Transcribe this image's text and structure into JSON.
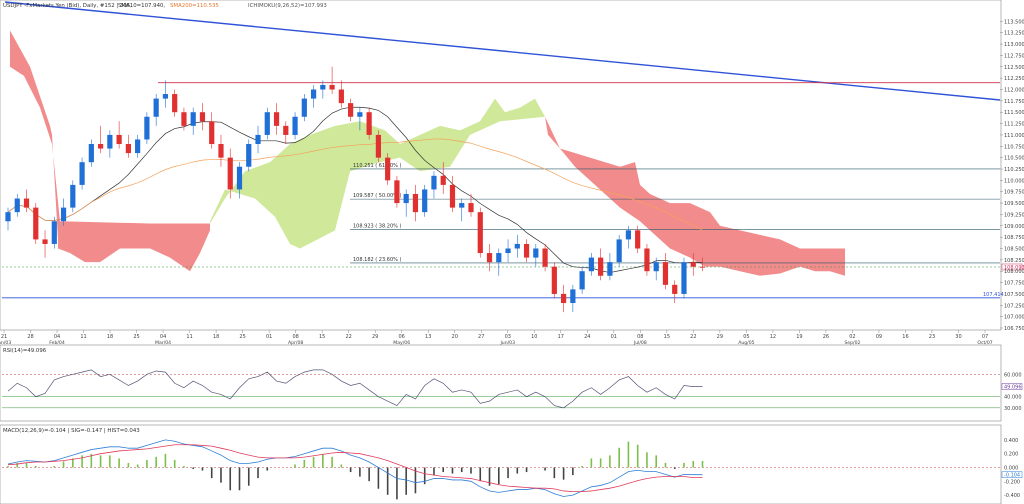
{
  "header": {
    "symbol_text": "USDJPY -FxMarkets Yen (Bid), Daily, #152 | 305,",
    "sma10_text": "SMA10=107.940,",
    "sma200_text": "SMA200=110.535",
    "ichimoku_text": "ICHIMOKU(9,26,52)=107.993"
  },
  "colors": {
    "up": "#1f6fd6",
    "down": "#e03030",
    "sma10": "#333333",
    "sma200": "#f5a25a",
    "cloud_bull": "#cfe89a",
    "cloud_bear": "#f28b8b",
    "trend": "#2f52d8",
    "resistance": "#d0304a",
    "support": "#2f52d8",
    "rsi": "#555577",
    "macd": "#2f7fd8",
    "signal": "#e03a5a",
    "hist_pos": "#7ac04a",
    "hist_neg": "#444444"
  },
  "chart_data": {
    "type": "candlestick",
    "title": "USDJPY Daily",
    "ylim": [
      106.75,
      113.75
    ],
    "y_ticks": [
      "113.500",
      "113.250",
      "113.000",
      "112.750",
      "112.500",
      "112.250",
      "112.000",
      "111.750",
      "111.500",
      "111.250",
      "111.000",
      "110.750",
      "110.500",
      "110.250",
      "110.000",
      "109.750",
      "109.500",
      "109.250",
      "109.000",
      "108.750",
      "108.500",
      "108.250",
      "108.000",
      "107.750",
      "107.500",
      "107.250",
      "107.000",
      "106.750"
    ],
    "x_ticks": [
      {
        "label": "21",
        "sub": "Jan/03"
      },
      {
        "label": "28",
        "sub": ""
      },
      {
        "label": "04",
        "sub": "Feb/04"
      },
      {
        "label": "11",
        "sub": ""
      },
      {
        "label": "18",
        "sub": ""
      },
      {
        "label": "25",
        "sub": ""
      },
      {
        "label": "04",
        "sub": "Mar/04"
      },
      {
        "label": "11",
        "sub": ""
      },
      {
        "label": "18",
        "sub": ""
      },
      {
        "label": "25",
        "sub": ""
      },
      {
        "label": "01",
        "sub": ""
      },
      {
        "label": "08",
        "sub": "Apr/08"
      },
      {
        "label": "15",
        "sub": ""
      },
      {
        "label": "22",
        "sub": ""
      },
      {
        "label": "29",
        "sub": ""
      },
      {
        "label": "06",
        "sub": "May/06"
      },
      {
        "label": "13",
        "sub": ""
      },
      {
        "label": "20",
        "sub": ""
      },
      {
        "label": "27",
        "sub": ""
      },
      {
        "label": "03",
        "sub": "Jun/03"
      },
      {
        "label": "10",
        "sub": ""
      },
      {
        "label": "17",
        "sub": ""
      },
      {
        "label": "24",
        "sub": ""
      },
      {
        "label": "01",
        "sub": ""
      },
      {
        "label": "08",
        "sub": "Jul/08"
      },
      {
        "label": "15",
        "sub": ""
      },
      {
        "label": "22",
        "sub": ""
      },
      {
        "label": "29",
        "sub": ""
      },
      {
        "label": "05",
        "sub": "Aug/05"
      },
      {
        "label": "12",
        "sub": ""
      },
      {
        "label": "19",
        "sub": ""
      },
      {
        "label": "26",
        "sub": ""
      },
      {
        "label": "02",
        "sub": "Sep/02"
      },
      {
        "label": "09",
        "sub": ""
      },
      {
        "label": "16",
        "sub": ""
      },
      {
        "label": "23",
        "sub": ""
      },
      {
        "label": "30",
        "sub": ""
      },
      {
        "label": "07",
        "sub": "Oct/07"
      }
    ],
    "fib_levels": [
      {
        "label": "110.251 ( 61.80% )",
        "value": 110.251
      },
      {
        "label": "109.587 ( 50.00% )",
        "value": 109.587
      },
      {
        "label": "108.923 ( 38.20% )",
        "value": 108.923
      },
      {
        "label": "108.182 ( 23.60% )",
        "value": 108.182
      }
    ],
    "resistance": 112.15,
    "support_label": "107.414",
    "support": 107.414,
    "last_price_label": "108.093",
    "last_price": 108.093,
    "candles": [
      [
        109.1,
        109.4,
        108.9,
        109.3
      ],
      [
        109.3,
        109.7,
        109.2,
        109.6
      ],
      [
        109.6,
        109.8,
        109.3,
        109.4
      ],
      [
        109.4,
        109.5,
        108.6,
        108.7
      ],
      [
        108.7,
        108.9,
        108.3,
        108.6
      ],
      [
        108.6,
        109.2,
        108.5,
        109.1
      ],
      [
        109.1,
        109.6,
        109.0,
        109.4
      ],
      [
        109.4,
        110.0,
        109.3,
        109.9
      ],
      [
        109.9,
        110.5,
        109.8,
        110.4
      ],
      [
        110.4,
        110.9,
        110.3,
        110.8
      ],
      [
        110.8,
        111.2,
        110.6,
        110.7
      ],
      [
        110.7,
        111.1,
        110.5,
        111.0
      ],
      [
        111.0,
        111.3,
        110.7,
        110.8
      ],
      [
        110.8,
        111.0,
        110.5,
        110.6
      ],
      [
        110.6,
        111.0,
        110.5,
        110.9
      ],
      [
        110.9,
        111.5,
        110.8,
        111.4
      ],
      [
        111.4,
        111.9,
        111.2,
        111.8
      ],
      [
        111.8,
        112.2,
        111.6,
        111.9
      ],
      [
        111.9,
        112.0,
        111.4,
        111.5
      ],
      [
        111.5,
        111.6,
        111.1,
        111.2
      ],
      [
        111.2,
        111.6,
        111.0,
        111.5
      ],
      [
        111.5,
        111.7,
        111.1,
        111.3
      ],
      [
        111.3,
        111.5,
        110.7,
        110.8
      ],
      [
        110.8,
        111.0,
        110.3,
        110.5
      ],
      [
        110.5,
        110.7,
        109.6,
        109.8
      ],
      [
        109.8,
        110.4,
        109.6,
        110.3
      ],
      [
        110.3,
        110.9,
        110.2,
        110.8
      ],
      [
        110.8,
        111.2,
        110.6,
        111.0
      ],
      [
        111.0,
        111.6,
        110.9,
        111.5
      ],
      [
        111.5,
        111.7,
        111.0,
        111.2
      ],
      [
        111.2,
        111.3,
        110.8,
        111.0
      ],
      [
        111.0,
        111.5,
        110.9,
        111.4
      ],
      [
        111.4,
        111.9,
        111.3,
        111.8
      ],
      [
        111.8,
        112.1,
        111.6,
        112.0
      ],
      [
        112.0,
        112.2,
        111.8,
        112.1
      ],
      [
        112.1,
        112.5,
        111.9,
        112.0
      ],
      [
        112.0,
        112.2,
        111.6,
        111.7
      ],
      [
        111.7,
        111.8,
        111.3,
        111.4
      ],
      [
        111.4,
        111.6,
        111.1,
        111.5
      ],
      [
        111.5,
        111.6,
        110.9,
        111.0
      ],
      [
        111.0,
        111.1,
        110.4,
        110.5
      ],
      [
        110.5,
        110.6,
        109.9,
        110.0
      ],
      [
        110.0,
        110.1,
        109.4,
        109.5
      ],
      [
        109.5,
        109.8,
        109.2,
        109.7
      ],
      [
        109.7,
        109.9,
        109.1,
        109.3
      ],
      [
        109.3,
        109.9,
        109.2,
        109.8
      ],
      [
        109.8,
        110.2,
        109.6,
        110.1
      ],
      [
        110.1,
        110.4,
        109.7,
        109.9
      ],
      [
        109.9,
        110.1,
        109.3,
        109.4
      ],
      [
        109.4,
        109.6,
        109.1,
        109.5
      ],
      [
        109.5,
        109.7,
        109.2,
        109.3
      ],
      [
        109.3,
        109.4,
        108.3,
        108.4
      ],
      [
        108.4,
        108.6,
        108.0,
        108.2
      ],
      [
        108.2,
        108.5,
        107.9,
        108.4
      ],
      [
        108.4,
        108.7,
        108.2,
        108.5
      ],
      [
        108.5,
        108.8,
        108.3,
        108.6
      ],
      [
        108.6,
        108.7,
        108.2,
        108.3
      ],
      [
        108.3,
        108.6,
        108.1,
        108.5
      ],
      [
        108.5,
        108.6,
        108.0,
        108.1
      ],
      [
        108.1,
        108.2,
        107.4,
        107.5
      ],
      [
        107.5,
        107.7,
        107.1,
        107.3
      ],
      [
        107.3,
        107.7,
        107.1,
        107.6
      ],
      [
        107.6,
        108.1,
        107.5,
        108.0
      ],
      [
        108.0,
        108.4,
        107.9,
        108.3
      ],
      [
        108.3,
        108.5,
        107.8,
        107.9
      ],
      [
        107.9,
        108.4,
        107.8,
        108.2
      ],
      [
        108.2,
        108.8,
        108.1,
        108.7
      ],
      [
        108.7,
        109.0,
        108.5,
        108.9
      ],
      [
        108.9,
        109.0,
        108.4,
        108.5
      ],
      [
        108.5,
        108.6,
        107.9,
        108.0
      ],
      [
        108.0,
        108.3,
        107.8,
        108.2
      ],
      [
        108.2,
        108.4,
        107.6,
        107.7
      ],
      [
        107.7,
        107.8,
        107.3,
        107.5
      ],
      [
        107.5,
        108.3,
        107.4,
        108.2
      ],
      [
        108.2,
        108.4,
        107.9,
        108.1
      ],
      [
        108.1,
        108.3,
        108.0,
        108.093
      ]
    ]
  },
  "rsi": {
    "label": "RSI(14)=49.096",
    "value_label": "49.096",
    "levels": [
      "60.000",
      "40.000",
      "30.000"
    ],
    "values": [
      45,
      52,
      48,
      40,
      43,
      55,
      58,
      60,
      62,
      64,
      58,
      60,
      55,
      50,
      54,
      60,
      63,
      62,
      52,
      48,
      54,
      50,
      44,
      42,
      38,
      48,
      56,
      58,
      62,
      54,
      52,
      58,
      62,
      64,
      64,
      60,
      54,
      50,
      52,
      46,
      40,
      36,
      32,
      42,
      38,
      50,
      56,
      52,
      44,
      46,
      44,
      34,
      36,
      42,
      44,
      46,
      40,
      44,
      40,
      32,
      30,
      36,
      44,
      48,
      42,
      48,
      55,
      58,
      50,
      44,
      48,
      42,
      38,
      50,
      49,
      49
    ]
  },
  "macd": {
    "label": "MACD(12,26,9)=-0.104 | SIG=-0.147 | HIST=0.043",
    "ticks": [
      "0.400",
      "0.200",
      "0.000",
      "-0.200",
      "-0.400"
    ],
    "value_label": "-0.104",
    "macd": [
      0.05,
      0.08,
      0.1,
      0.09,
      0.08,
      0.1,
      0.14,
      0.18,
      0.22,
      0.26,
      0.28,
      0.3,
      0.3,
      0.28,
      0.28,
      0.32,
      0.36,
      0.4,
      0.38,
      0.34,
      0.32,
      0.3,
      0.24,
      0.18,
      0.1,
      0.06,
      0.06,
      0.08,
      0.12,
      0.14,
      0.14,
      0.16,
      0.2,
      0.24,
      0.28,
      0.28,
      0.24,
      0.18,
      0.14,
      0.08,
      0.0,
      -0.08,
      -0.16,
      -0.18,
      -0.22,
      -0.2,
      -0.16,
      -0.16,
      -0.18,
      -0.18,
      -0.2,
      -0.28,
      -0.34,
      -0.36,
      -0.34,
      -0.32,
      -0.32,
      -0.3,
      -0.32,
      -0.38,
      -0.42,
      -0.4,
      -0.34,
      -0.28,
      -0.26,
      -0.22,
      -0.14,
      -0.06,
      -0.04,
      -0.06,
      -0.06,
      -0.1,
      -0.14,
      -0.1,
      -0.104,
      -0.104
    ],
    "signal": [
      0.04,
      0.05,
      0.07,
      0.08,
      0.08,
      0.09,
      0.1,
      0.12,
      0.14,
      0.17,
      0.2,
      0.22,
      0.24,
      0.25,
      0.26,
      0.27,
      0.29,
      0.31,
      0.33,
      0.33,
      0.33,
      0.32,
      0.31,
      0.28,
      0.25,
      0.21,
      0.18,
      0.15,
      0.14,
      0.14,
      0.14,
      0.14,
      0.15,
      0.17,
      0.19,
      0.21,
      0.22,
      0.21,
      0.2,
      0.17,
      0.14,
      0.1,
      0.05,
      0.0,
      -0.05,
      -0.09,
      -0.11,
      -0.13,
      -0.14,
      -0.15,
      -0.16,
      -0.19,
      -0.22,
      -0.25,
      -0.27,
      -0.28,
      -0.29,
      -0.3,
      -0.3,
      -0.31,
      -0.34,
      -0.35,
      -0.35,
      -0.34,
      -0.32,
      -0.3,
      -0.27,
      -0.23,
      -0.19,
      -0.16,
      -0.14,
      -0.13,
      -0.13,
      -0.13,
      -0.147,
      -0.147
    ]
  }
}
